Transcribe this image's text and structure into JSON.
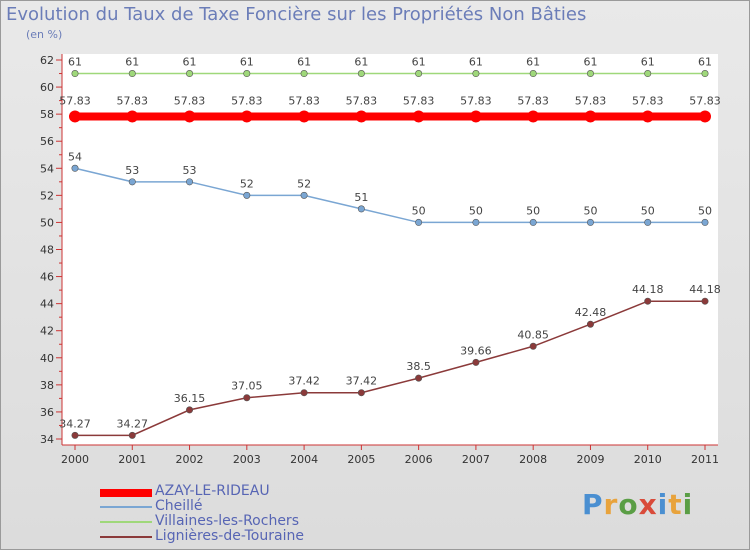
{
  "title": "Evolution du Taux de Taxe Foncière sur les Propriétés Non Bâties",
  "subtitle": "(en %)",
  "logo_text": "Proxiti",
  "chart_data": {
    "type": "line",
    "title": "Evolution du Taux de Taxe Foncière sur les Propriétés Non Bâties",
    "ylabel": "(en %)",
    "xlabel": "",
    "x": [
      "2000",
      "2001",
      "2002",
      "2003",
      "2004",
      "2005",
      "2006",
      "2007",
      "2008",
      "2009",
      "2010",
      "2011"
    ],
    "ylim": [
      34,
      62
    ],
    "yticks": [
      34,
      36,
      38,
      40,
      42,
      44,
      46,
      48,
      50,
      52,
      54,
      56,
      58,
      60,
      62
    ],
    "grid": false,
    "legend_position": "bottom-left",
    "series": [
      {
        "name": "AZAY-LE-RIDEAU",
        "color": "#ff0000",
        "values": [
          57.83,
          57.83,
          57.83,
          57.83,
          57.83,
          57.83,
          57.83,
          57.83,
          57.83,
          57.83,
          57.83,
          57.83
        ],
        "labels": [
          "57.83",
          "57.83",
          "57.83",
          "57.83",
          "57.83",
          "57.83",
          "57.83",
          "57.83",
          "57.83",
          "57.83",
          "57.83",
          "57.83"
        ]
      },
      {
        "name": "Cheillé",
        "color": "#7aa6d3",
        "values": [
          54,
          53,
          53,
          52,
          52,
          51,
          50,
          50,
          50,
          50,
          50,
          50
        ],
        "labels": [
          "54",
          "53",
          "53",
          "52",
          "52",
          "51",
          "50",
          "50",
          "50",
          "50",
          "50",
          "50"
        ]
      },
      {
        "name": "Villaines-les-Rochers",
        "color": "#9fd87a",
        "values": [
          61,
          61,
          61,
          61,
          61,
          61,
          61,
          61,
          61,
          61,
          61,
          61
        ],
        "labels": [
          "61",
          "61",
          "61",
          "61",
          "61",
          "61",
          "61",
          "61",
          "61",
          "61",
          "61",
          "61"
        ]
      },
      {
        "name": "Lignières-de-Touraine",
        "color": "#8b3a3a",
        "values": [
          34.27,
          34.27,
          36.15,
          37.05,
          37.42,
          37.42,
          38.5,
          39.66,
          40.85,
          42.48,
          44.18,
          44.18
        ],
        "labels": [
          "34.27",
          "34.27",
          "36.15",
          "37.05",
          "37.42",
          "37.42",
          "38.5",
          "39.66",
          "40.85",
          "42.48",
          "44.18",
          "44.18"
        ]
      }
    ]
  }
}
